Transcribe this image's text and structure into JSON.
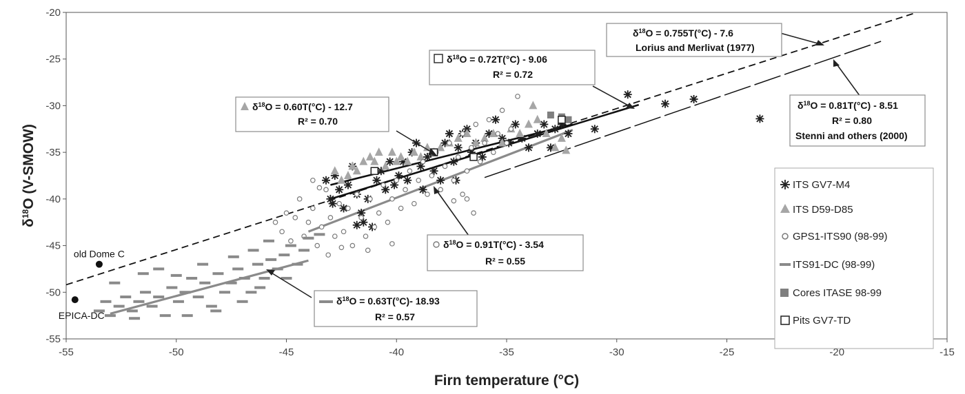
{
  "chart_data": {
    "type": "scatter",
    "xlabel": "Firn temperature (°C)",
    "ylabel": "δ18O (V-SMOW)",
    "ylabel_main": "δ",
    "ylabel_sup": "18",
    "ylabel_rest": "O (V-SMOW)",
    "xlim": [
      -55,
      -15
    ],
    "ylim": [
      -55,
      -20
    ],
    "x_ticks": [
      "-55",
      "-50",
      "-45",
      "-40",
      "-35",
      "-30",
      "-25",
      "-20",
      "-15"
    ],
    "y_ticks": [
      "-55",
      "-50",
      "-45",
      "-40",
      "-35",
      "-30",
      "-25",
      "-20"
    ],
    "grid": false,
    "legend_position": "right",
    "series": [
      {
        "name": "ITS GV7-M4",
        "marker": "asterisk",
        "color": "#1f1f1f",
        "points": [
          [
            -43.2,
            -38
          ],
          [
            -43,
            -40
          ],
          [
            -42.8,
            -37.5
          ],
          [
            -42.6,
            -39
          ],
          [
            -42.4,
            -41
          ],
          [
            -42.2,
            -38.5
          ],
          [
            -42,
            -36.5
          ],
          [
            -41.8,
            -39.5
          ],
          [
            -41.6,
            -41.5
          ],
          [
            -41.5,
            -42.5
          ],
          [
            -41.3,
            -40
          ],
          [
            -41.1,
            -43
          ],
          [
            -40.9,
            -38
          ],
          [
            -40.7,
            -37
          ],
          [
            -40.5,
            -39
          ],
          [
            -40.3,
            -36
          ],
          [
            -40.1,
            -38.5
          ],
          [
            -39.9,
            -37.5
          ],
          [
            -39.7,
            -36
          ],
          [
            -39.5,
            -38
          ],
          [
            -39.3,
            -35
          ],
          [
            -39.1,
            -34
          ],
          [
            -38.9,
            -36.5
          ],
          [
            -38.6,
            -35.5
          ],
          [
            -38.3,
            -37
          ],
          [
            -38,
            -38
          ],
          [
            -37.8,
            -34
          ],
          [
            -37.6,
            -33
          ],
          [
            -37.4,
            -36
          ],
          [
            -37.2,
            -34.5
          ],
          [
            -37,
            -33
          ],
          [
            -36.8,
            -32.5
          ],
          [
            -36.6,
            -35
          ],
          [
            -36.4,
            -34
          ],
          [
            -36.1,
            -35.5
          ],
          [
            -35.8,
            -33
          ],
          [
            -35.5,
            -31.5
          ],
          [
            -35.2,
            -33.5
          ],
          [
            -34.9,
            -34
          ],
          [
            -34.6,
            -32
          ],
          [
            -34.3,
            -33.5
          ],
          [
            -34,
            -34.5
          ],
          [
            -33.6,
            -33
          ],
          [
            -33.3,
            -32
          ],
          [
            -33,
            -34.5
          ],
          [
            -32.8,
            -32.5
          ],
          [
            -32.5,
            -32
          ],
          [
            -32.2,
            -33
          ],
          [
            -31,
            -32.5
          ],
          [
            -29.5,
            -28.8
          ],
          [
            -27.8,
            -29.8
          ],
          [
            -26.5,
            -29.3
          ],
          [
            -23.5,
            -31.4
          ],
          [
            -38.8,
            -39
          ],
          [
            -37.3,
            -38
          ],
          [
            -41.8,
            -42.8
          ],
          [
            -42.9,
            -40.5
          ]
        ]
      },
      {
        "name": "ITS D59-D85",
        "marker": "triangle",
        "color": "#a6a6a6",
        "points": [
          [
            -42.8,
            -37
          ],
          [
            -42.5,
            -38
          ],
          [
            -42.2,
            -37.5
          ],
          [
            -42,
            -36.5
          ],
          [
            -41.8,
            -37
          ],
          [
            -41.5,
            -36
          ],
          [
            -41.2,
            -35.5
          ],
          [
            -41,
            -36
          ],
          [
            -40.8,
            -35
          ],
          [
            -40.5,
            -36.5
          ],
          [
            -40.2,
            -35
          ],
          [
            -40,
            -36
          ],
          [
            -39.8,
            -35.5
          ],
          [
            -39.5,
            -36
          ],
          [
            -39.2,
            -35
          ],
          [
            -38.9,
            -35.5
          ],
          [
            -38.6,
            -34.5
          ],
          [
            -38.3,
            -35
          ],
          [
            -38,
            -34.5
          ],
          [
            -37.6,
            -34
          ],
          [
            -37.2,
            -33.5
          ],
          [
            -36.8,
            -33
          ],
          [
            -36.4,
            -34
          ],
          [
            -36,
            -33.5
          ],
          [
            -35.6,
            -33
          ],
          [
            -35.2,
            -34
          ],
          [
            -34.8,
            -32.5
          ],
          [
            -34.4,
            -33
          ],
          [
            -34,
            -32
          ],
          [
            -33.6,
            -31.5
          ],
          [
            -33.2,
            -33
          ],
          [
            -32.8,
            -34.5
          ],
          [
            -32.5,
            -33.5
          ],
          [
            -32.3,
            -34.8
          ],
          [
            -33.8,
            -30
          ]
        ]
      },
      {
        "name": "GPS1-ITS90 (98-99)",
        "marker": "circle",
        "color": "#7a7a7a",
        "points": [
          [
            -45.2,
            -43.5
          ],
          [
            -45,
            -41.5
          ],
          [
            -44.8,
            -44.5
          ],
          [
            -44.6,
            -42
          ],
          [
            -44.4,
            -40
          ],
          [
            -44.2,
            -44
          ],
          [
            -44,
            -42.5
          ],
          [
            -43.8,
            -41
          ],
          [
            -43.6,
            -45
          ],
          [
            -43.4,
            -43
          ],
          [
            -43.2,
            -39
          ],
          [
            -43,
            -42
          ],
          [
            -42.8,
            -44
          ],
          [
            -42.6,
            -40.5
          ],
          [
            -42.4,
            -43.5
          ],
          [
            -42.2,
            -41
          ],
          [
            -42,
            -45
          ],
          [
            -41.8,
            -39.5
          ],
          [
            -41.6,
            -42
          ],
          [
            -41.4,
            -44
          ],
          [
            -41.2,
            -40
          ],
          [
            -41,
            -43
          ],
          [
            -40.8,
            -41.5
          ],
          [
            -40.6,
            -38.5
          ],
          [
            -40.4,
            -42.5
          ],
          [
            -40.2,
            -40
          ],
          [
            -40,
            -38
          ],
          [
            -39.8,
            -41
          ],
          [
            -39.6,
            -39
          ],
          [
            -39.4,
            -37
          ],
          [
            -39.2,
            -40.5
          ],
          [
            -39,
            -38
          ],
          [
            -38.8,
            -36
          ],
          [
            -38.6,
            -39.5
          ],
          [
            -38.4,
            -37.5
          ],
          [
            -38.2,
            -35
          ],
          [
            -38,
            -39
          ],
          [
            -37.8,
            -36.5
          ],
          [
            -37.6,
            -34
          ],
          [
            -37.4,
            -38
          ],
          [
            -37.2,
            -35.5
          ],
          [
            -37,
            -33
          ],
          [
            -36.8,
            -37
          ],
          [
            -36.6,
            -34.5
          ],
          [
            -36.4,
            -32
          ],
          [
            -36.2,
            -36
          ],
          [
            -36,
            -34
          ],
          [
            -35.8,
            -31.5
          ],
          [
            -35.6,
            -35
          ],
          [
            -35.4,
            -33
          ],
          [
            -35.2,
            -30.5
          ],
          [
            -35,
            -34
          ],
          [
            -34.8,
            -32.5
          ],
          [
            -34.5,
            -29
          ],
          [
            -37,
            -39.5
          ],
          [
            -36.8,
            -40
          ],
          [
            -36.5,
            -41.5
          ],
          [
            -37.4,
            -40.2
          ],
          [
            -43.8,
            -38
          ],
          [
            -43.5,
            -38.8
          ],
          [
            -45.5,
            -42.5
          ],
          [
            -43.1,
            -46
          ],
          [
            -42.5,
            -45.2
          ],
          [
            -41.3,
            -45.5
          ],
          [
            -40.2,
            -44.8
          ]
        ]
      },
      {
        "name": "ITS91-DC (98-99)",
        "marker": "dash",
        "color": "#8a8a8a",
        "points": [
          [
            -53.5,
            -52
          ],
          [
            -53.2,
            -51
          ],
          [
            -53,
            -52.5
          ],
          [
            -52.6,
            -51.5
          ],
          [
            -52.3,
            -50.5
          ],
          [
            -52,
            -52
          ],
          [
            -51.7,
            -51
          ],
          [
            -51.4,
            -50
          ],
          [
            -51.1,
            -51.5
          ],
          [
            -50.8,
            -50.5
          ],
          [
            -50.5,
            -52.5
          ],
          [
            -50.2,
            -49.5
          ],
          [
            -49.9,
            -51
          ],
          [
            -49.6,
            -50
          ],
          [
            -49.3,
            -48.5
          ],
          [
            -49,
            -50.5
          ],
          [
            -48.7,
            -49
          ],
          [
            -48.4,
            -51.5
          ],
          [
            -48.1,
            -48
          ],
          [
            -47.8,
            -50
          ],
          [
            -47.5,
            -49
          ],
          [
            -47.2,
            -47.5
          ],
          [
            -46.9,
            -48.5
          ],
          [
            -46.6,
            -50
          ],
          [
            -46.3,
            -47
          ],
          [
            -46,
            -48.5
          ],
          [
            -45.7,
            -46.5
          ],
          [
            -45.4,
            -47.5
          ],
          [
            -45.1,
            -46
          ],
          [
            -44.8,
            -45
          ],
          [
            -44.5,
            -47
          ],
          [
            -44.2,
            -45.5
          ],
          [
            -51.5,
            -48
          ],
          [
            -50.8,
            -47.5
          ],
          [
            -49.5,
            -52.5
          ],
          [
            -48.2,
            -52
          ],
          [
            -47,
            -51
          ],
          [
            -46.5,
            -45.5
          ],
          [
            -45.8,
            -44.5
          ],
          [
            -52.8,
            -49
          ],
          [
            -51.9,
            -52.8
          ],
          [
            -50,
            -48.2
          ],
          [
            -48.8,
            -47
          ],
          [
            -47.4,
            -46.2
          ],
          [
            -46.2,
            -49.5
          ],
          [
            -45,
            -48.5
          ],
          [
            -44,
            -44.2
          ],
          [
            -43.5,
            -43.8
          ]
        ]
      },
      {
        "name": "Cores ITASE 98-99",
        "marker": "square-filled",
        "color": "#7f7f7f",
        "points": [
          [
            -33,
            -31
          ],
          [
            -32.5,
            -31.2
          ],
          [
            -32.2,
            -31.5
          ]
        ]
      },
      {
        "name": "Pits GV7-TD",
        "marker": "square-open",
        "color": "#1f1f1f",
        "points": [
          [
            -41,
            -37
          ],
          [
            -38.3,
            -35
          ],
          [
            -36.5,
            -35.5
          ],
          [
            -32.5,
            -31.5
          ]
        ]
      }
    ],
    "site_points": [
      {
        "name": "old Dome C",
        "x": -53.5,
        "y": -47
      },
      {
        "name": "EPICA-DC",
        "x": -54.6,
        "y": -50.8
      }
    ],
    "regression_lines": [
      {
        "eq_main": "O = 0.755T(°C) - 7.6",
        "sup": "18",
        "r2": "",
        "source": "Lorius and Merlivat (1977)",
        "from": [
          -55,
          -49.2
        ],
        "to": [
          -16.5,
          -20.1
        ],
        "style": "dashed",
        "marker": ""
      },
      {
        "eq_main": "O = 0.72T(°C) - 9.06",
        "sup": "18",
        "r2": "R² = 0.72",
        "source": "",
        "from": [
          -43,
          -40
        ],
        "to": [
          -29,
          -29.9
        ],
        "style": "solid",
        "marker": "square-open"
      },
      {
        "eq_main": "O = 0.60T(°C) - 12.7",
        "sup": "18",
        "r2": "R² = 0.70",
        "source": "",
        "from": [
          -43,
          -38.5
        ],
        "to": [
          -32,
          -32
        ],
        "style": "solid",
        "marker": "triangle"
      },
      {
        "eq_main": "O = 0.81T(°C) - 8.51",
        "sup": "18",
        "r2": "R² = 0.80",
        "source": "Stenni and others (2000)",
        "from": [
          -36,
          -37.7
        ],
        "to": [
          -18,
          -23.1
        ],
        "style": "longdash",
        "marker": ""
      },
      {
        "eq_main": "O = 0.91T(°C) - 3.54",
        "sup": "18",
        "r2": "R² = 0.55",
        "source": "",
        "from": [
          -44,
          -43.5
        ],
        "to": [
          -32,
          -32.6
        ],
        "style": "solid-gray",
        "marker": "circle"
      },
      {
        "eq_main": "O = 0.63T(°C)- 18.93",
        "sup": "18",
        "r2": "R² = 0.57",
        "source": "",
        "from": [
          -53,
          -52.3
        ],
        "to": [
          -44,
          -46.6
        ],
        "style": "solid-gray",
        "marker": "dash"
      }
    ]
  }
}
